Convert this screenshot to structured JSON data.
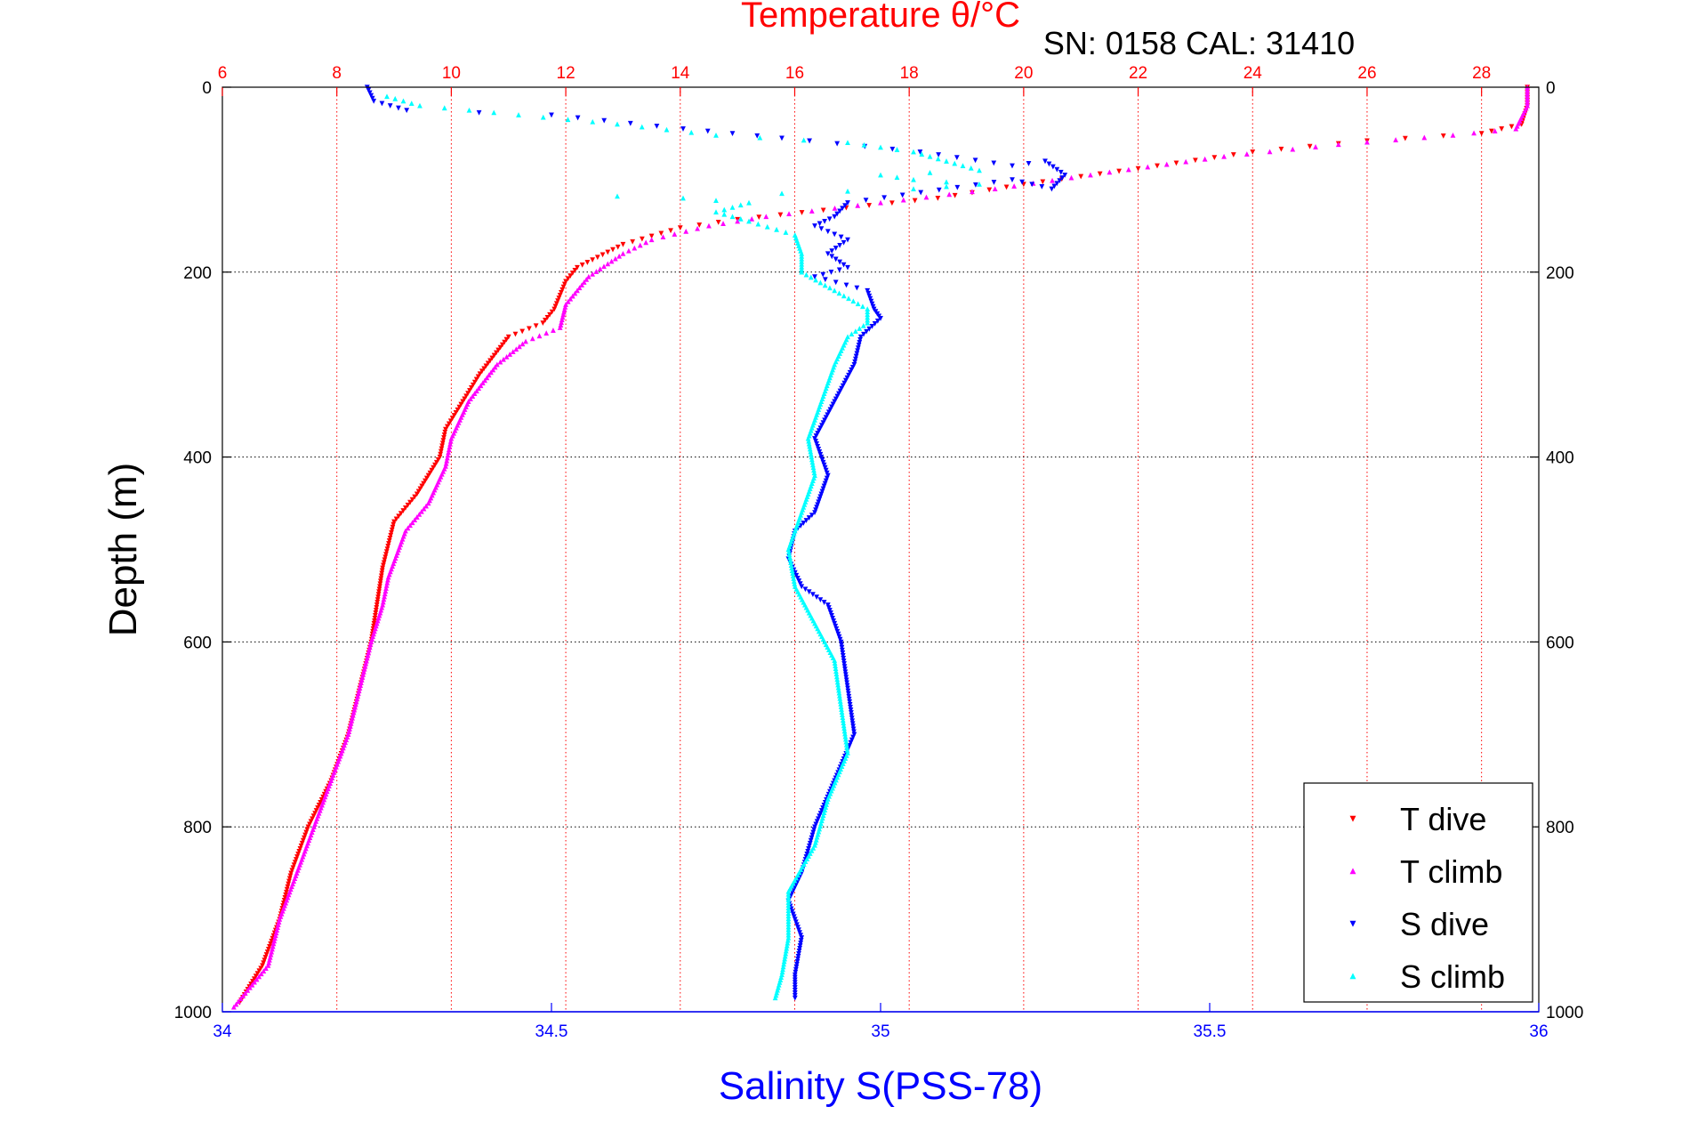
{
  "chart_data": {
    "type": "scatter",
    "title": "Temperature θ/°C",
    "subtitle": "SN: 0158  CAL: 31410",
    "ylabel": "Depth (m)",
    "xlabel": "Salinity S(PSS-78)",
    "ylim": [
      0,
      1000
    ],
    "y_reversed": true,
    "y_ticks": [
      "0",
      "200",
      "400",
      "600",
      "800",
      "1000"
    ],
    "temperature_axis": {
      "range": [
        6,
        29
      ],
      "ticks": [
        "6",
        "8",
        "10",
        "12",
        "14",
        "16",
        "18",
        "20",
        "22",
        "24",
        "26",
        "28"
      ],
      "color": "#ff0000"
    },
    "salinity_axis": {
      "range": [
        34,
        36
      ],
      "ticks": [
        "34",
        "34.5",
        "35",
        "35.5",
        "36"
      ],
      "color": "#0000ff"
    },
    "grid": true,
    "legend_position": "bottom-right",
    "series": [
      {
        "name": "T dive",
        "axis": "temperature",
        "color": "#ff0000",
        "marker": "triangle-down",
        "points": [
          {
            "x": 28.8,
            "y": 0
          },
          {
            "x": 28.8,
            "y": 20
          },
          {
            "x": 28.7,
            "y": 40
          },
          {
            "x": 28.0,
            "y": 50
          },
          {
            "x": 26.0,
            "y": 58
          },
          {
            "x": 24.0,
            "y": 70
          },
          {
            "x": 22.0,
            "y": 88
          },
          {
            "x": 20.0,
            "y": 105
          },
          {
            "x": 18.5,
            "y": 120
          },
          {
            "x": 16.5,
            "y": 133
          },
          {
            "x": 15.0,
            "y": 143
          },
          {
            "x": 14.0,
            "y": 152
          },
          {
            "x": 13.0,
            "y": 170
          },
          {
            "x": 12.2,
            "y": 195
          },
          {
            "x": 12.0,
            "y": 210
          },
          {
            "x": 11.8,
            "y": 240
          },
          {
            "x": 11.6,
            "y": 255
          },
          {
            "x": 11.0,
            "y": 270
          },
          {
            "x": 10.5,
            "y": 310
          },
          {
            "x": 10.2,
            "y": 340
          },
          {
            "x": 9.9,
            "y": 370
          },
          {
            "x": 9.8,
            "y": 400
          },
          {
            "x": 9.4,
            "y": 440
          },
          {
            "x": 9.0,
            "y": 470
          },
          {
            "x": 8.8,
            "y": 520
          },
          {
            "x": 8.7,
            "y": 560
          },
          {
            "x": 8.6,
            "y": 600
          },
          {
            "x": 8.4,
            "y": 650
          },
          {
            "x": 8.2,
            "y": 700
          },
          {
            "x": 7.9,
            "y": 750
          },
          {
            "x": 7.5,
            "y": 800
          },
          {
            "x": 7.2,
            "y": 850
          },
          {
            "x": 7.0,
            "y": 900
          },
          {
            "x": 6.7,
            "y": 950
          },
          {
            "x": 6.3,
            "y": 990
          }
        ]
      },
      {
        "name": "T climb",
        "axis": "temperature",
        "color": "#ff00ff",
        "marker": "triangle-up",
        "points": [
          {
            "x": 28.8,
            "y": 0
          },
          {
            "x": 28.8,
            "y": 20
          },
          {
            "x": 28.6,
            "y": 45
          },
          {
            "x": 27.5,
            "y": 52
          },
          {
            "x": 25.5,
            "y": 62
          },
          {
            "x": 23.5,
            "y": 75
          },
          {
            "x": 21.5,
            "y": 92
          },
          {
            "x": 19.5,
            "y": 110
          },
          {
            "x": 17.5,
            "y": 125
          },
          {
            "x": 15.5,
            "y": 140
          },
          {
            "x": 14.5,
            "y": 150
          },
          {
            "x": 13.5,
            "y": 165
          },
          {
            "x": 13.0,
            "y": 180
          },
          {
            "x": 12.4,
            "y": 205
          },
          {
            "x": 12.0,
            "y": 235
          },
          {
            "x": 11.9,
            "y": 260
          },
          {
            "x": 11.3,
            "y": 275
          },
          {
            "x": 10.8,
            "y": 300
          },
          {
            "x": 10.3,
            "y": 340
          },
          {
            "x": 10.0,
            "y": 380
          },
          {
            "x": 9.9,
            "y": 410
          },
          {
            "x": 9.6,
            "y": 450
          },
          {
            "x": 9.2,
            "y": 480
          },
          {
            "x": 8.9,
            "y": 530
          },
          {
            "x": 8.8,
            "y": 560
          },
          {
            "x": 8.6,
            "y": 600
          },
          {
            "x": 8.4,
            "y": 650
          },
          {
            "x": 8.2,
            "y": 700
          },
          {
            "x": 7.9,
            "y": 750
          },
          {
            "x": 7.6,
            "y": 800
          },
          {
            "x": 7.3,
            "y": 850
          },
          {
            "x": 7.0,
            "y": 900
          },
          {
            "x": 6.8,
            "y": 950
          },
          {
            "x": 6.2,
            "y": 995
          }
        ]
      },
      {
        "name": "S dive",
        "axis": "salinity",
        "color": "#0000ff",
        "marker": "triangle-down",
        "points": [
          {
            "x": 34.22,
            "y": 0
          },
          {
            "x": 34.23,
            "y": 15
          },
          {
            "x": 34.28,
            "y": 25
          },
          {
            "x": 34.5,
            "y": 30
          },
          {
            "x": 34.7,
            "y": 45
          },
          {
            "x": 34.85,
            "y": 55
          },
          {
            "x": 35.06,
            "y": 70
          },
          {
            "x": 35.2,
            "y": 85
          },
          {
            "x": 35.25,
            "y": 80
          },
          {
            "x": 35.28,
            "y": 95
          },
          {
            "x": 35.26,
            "y": 110
          },
          {
            "x": 35.2,
            "y": 100
          },
          {
            "x": 34.95,
            "y": 125
          },
          {
            "x": 34.93,
            "y": 140
          },
          {
            "x": 34.9,
            "y": 150
          },
          {
            "x": 34.95,
            "y": 165
          },
          {
            "x": 34.92,
            "y": 180
          },
          {
            "x": 34.95,
            "y": 195
          },
          {
            "x": 34.9,
            "y": 205
          },
          {
            "x": 34.98,
            "y": 220
          },
          {
            "x": 34.99,
            "y": 240
          },
          {
            "x": 35.0,
            "y": 250
          },
          {
            "x": 34.97,
            "y": 270
          },
          {
            "x": 34.96,
            "y": 300
          },
          {
            "x": 34.93,
            "y": 340
          },
          {
            "x": 34.9,
            "y": 380
          },
          {
            "x": 34.92,
            "y": 420
          },
          {
            "x": 34.9,
            "y": 460
          },
          {
            "x": 34.87,
            "y": 480
          },
          {
            "x": 34.86,
            "y": 510
          },
          {
            "x": 34.88,
            "y": 540
          },
          {
            "x": 34.92,
            "y": 560
          },
          {
            "x": 34.94,
            "y": 600
          },
          {
            "x": 34.95,
            "y": 650
          },
          {
            "x": 34.96,
            "y": 700
          },
          {
            "x": 34.93,
            "y": 750
          },
          {
            "x": 34.9,
            "y": 800
          },
          {
            "x": 34.88,
            "y": 850
          },
          {
            "x": 34.86,
            "y": 880
          },
          {
            "x": 34.88,
            "y": 920
          },
          {
            "x": 34.87,
            "y": 960
          },
          {
            "x": 34.87,
            "y": 985
          }
        ]
      },
      {
        "name": "S climb",
        "axis": "salinity",
        "color": "#00ffff",
        "marker": "triangle-up",
        "points": [
          {
            "x": 34.25,
            "y": 10
          },
          {
            "x": 34.3,
            "y": 20
          },
          {
            "x": 34.45,
            "y": 30
          },
          {
            "x": 34.6,
            "y": 40
          },
          {
            "x": 34.75,
            "y": 52
          },
          {
            "x": 34.95,
            "y": 60
          },
          {
            "x": 35.05,
            "y": 70
          },
          {
            "x": 35.1,
            "y": 80
          },
          {
            "x": 35.15,
            "y": 90
          },
          {
            "x": 35.0,
            "y": 95
          },
          {
            "x": 35.05,
            "y": 100
          },
          {
            "x": 35.15,
            "y": 105
          },
          {
            "x": 35.05,
            "y": 110
          },
          {
            "x": 34.85,
            "y": 115
          },
          {
            "x": 34.6,
            "y": 118
          },
          {
            "x": 34.7,
            "y": 120
          },
          {
            "x": 34.8,
            "y": 125
          },
          {
            "x": 34.75,
            "y": 135
          },
          {
            "x": 34.8,
            "y": 145
          },
          {
            "x": 34.87,
            "y": 160
          },
          {
            "x": 34.88,
            "y": 180
          },
          {
            "x": 34.88,
            "y": 200
          },
          {
            "x": 34.93,
            "y": 220
          },
          {
            "x": 34.98,
            "y": 240
          },
          {
            "x": 34.98,
            "y": 255
          },
          {
            "x": 34.95,
            "y": 270
          },
          {
            "x": 34.93,
            "y": 300
          },
          {
            "x": 34.91,
            "y": 340
          },
          {
            "x": 34.89,
            "y": 380
          },
          {
            "x": 34.9,
            "y": 420
          },
          {
            "x": 34.88,
            "y": 460
          },
          {
            "x": 34.86,
            "y": 500
          },
          {
            "x": 34.87,
            "y": 540
          },
          {
            "x": 34.9,
            "y": 580
          },
          {
            "x": 34.93,
            "y": 620
          },
          {
            "x": 34.94,
            "y": 670
          },
          {
            "x": 34.95,
            "y": 720
          },
          {
            "x": 34.92,
            "y": 770
          },
          {
            "x": 34.9,
            "y": 820
          },
          {
            "x": 34.86,
            "y": 870
          },
          {
            "x": 34.86,
            "y": 920
          },
          {
            "x": 34.85,
            "y": 960
          },
          {
            "x": 34.84,
            "y": 985
          }
        ]
      }
    ]
  }
}
